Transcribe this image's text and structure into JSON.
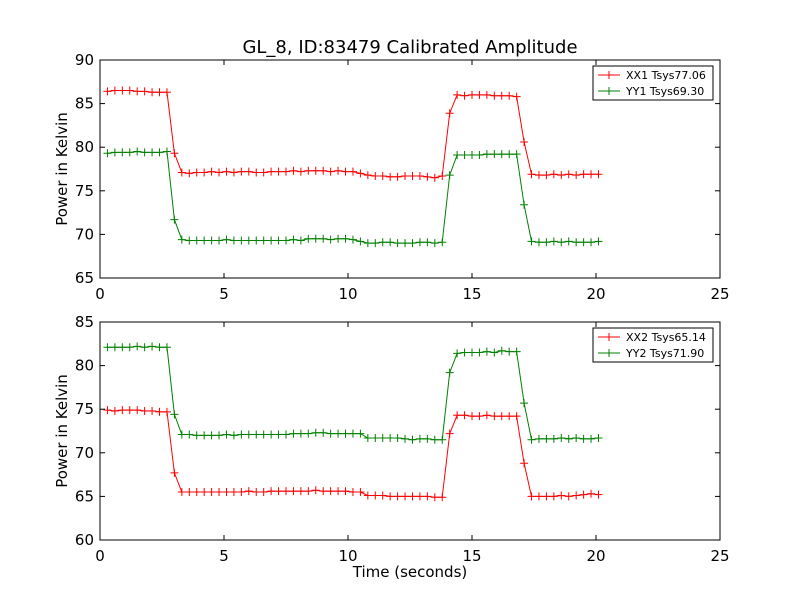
{
  "figure": {
    "title": "GL_8, ID:83479 Calibrated Amplitude",
    "xlabel": "Time (seconds)"
  },
  "chart_data": [
    {
      "type": "line",
      "title": "GL_8, ID:83479 Calibrated Amplitude",
      "xlabel": "",
      "ylabel": "Power in Kelvin",
      "xlim": [
        0,
        25
      ],
      "ylim": [
        65,
        90
      ],
      "xticks": [
        0,
        5,
        10,
        15,
        20,
        25
      ],
      "yticks": [
        65,
        70,
        75,
        80,
        85,
        90
      ],
      "grid": false,
      "legend": "top-right",
      "x": [
        0.3,
        0.6,
        0.9,
        1.2,
        1.5,
        1.8,
        2.1,
        2.4,
        2.7,
        3.0,
        3.3,
        3.6,
        3.9,
        4.2,
        4.5,
        4.8,
        5.1,
        5.4,
        5.7,
        6.0,
        6.3,
        6.6,
        6.9,
        7.2,
        7.5,
        7.8,
        8.1,
        8.4,
        8.7,
        9.0,
        9.3,
        9.6,
        9.9,
        10.2,
        10.5,
        10.8,
        11.1,
        11.4,
        11.7,
        12.0,
        12.3,
        12.6,
        12.9,
        13.2,
        13.5,
        13.8,
        14.1,
        14.4,
        14.7,
        15.0,
        15.3,
        15.6,
        15.9,
        16.2,
        16.5,
        16.8,
        17.1,
        17.4,
        17.7,
        18.0,
        18.3,
        18.6,
        18.9,
        19.2,
        19.5,
        19.8,
        20.1
      ],
      "series": [
        {
          "name": "XX1 Tsys77.06",
          "color": "#ff0000",
          "values": [
            86.4,
            86.5,
            86.5,
            86.5,
            86.4,
            86.4,
            86.3,
            86.3,
            86.3,
            79.3,
            77.1,
            77.0,
            77.1,
            77.1,
            77.2,
            77.1,
            77.2,
            77.1,
            77.2,
            77.2,
            77.1,
            77.1,
            77.2,
            77.2,
            77.2,
            77.3,
            77.2,
            77.3,
            77.3,
            77.3,
            77.2,
            77.3,
            77.2,
            77.2,
            77.0,
            76.8,
            76.7,
            76.7,
            76.6,
            76.6,
            76.7,
            76.7,
            76.7,
            76.6,
            76.5,
            76.7,
            83.9,
            86.0,
            85.9,
            86.0,
            86.0,
            86.0,
            85.9,
            85.9,
            85.9,
            85.8,
            80.6,
            76.9,
            76.8,
            76.8,
            76.9,
            76.8,
            76.9,
            76.8,
            76.9,
            76.9,
            76.9
          ]
        },
        {
          "name": "YY1 Tsys69.30",
          "color": "#008000",
          "values": [
            79.3,
            79.4,
            79.4,
            79.4,
            79.5,
            79.4,
            79.4,
            79.4,
            79.5,
            71.7,
            69.4,
            69.3,
            69.3,
            69.3,
            69.3,
            69.3,
            69.4,
            69.3,
            69.3,
            69.3,
            69.3,
            69.3,
            69.3,
            69.3,
            69.3,
            69.4,
            69.3,
            69.5,
            69.5,
            69.5,
            69.4,
            69.5,
            69.5,
            69.4,
            69.2,
            69.0,
            69.0,
            69.1,
            69.1,
            69.0,
            69.0,
            69.0,
            69.1,
            69.1,
            69.0,
            69.1,
            76.8,
            79.1,
            79.1,
            79.1,
            79.1,
            79.2,
            79.2,
            79.2,
            79.2,
            79.2,
            73.4,
            69.2,
            69.1,
            69.1,
            69.2,
            69.1,
            69.2,
            69.1,
            69.1,
            69.1,
            69.2
          ]
        }
      ]
    },
    {
      "type": "line",
      "title": "",
      "xlabel": "Time (seconds)",
      "ylabel": "Power in Kelvin",
      "xlim": [
        0,
        25
      ],
      "ylim": [
        60,
        85
      ],
      "xticks": [
        0,
        5,
        10,
        15,
        20,
        25
      ],
      "yticks": [
        60,
        65,
        70,
        75,
        80,
        85
      ],
      "grid": false,
      "legend": "top-right",
      "x": [
        0.3,
        0.6,
        0.9,
        1.2,
        1.5,
        1.8,
        2.1,
        2.4,
        2.7,
        3.0,
        3.3,
        3.6,
        3.9,
        4.2,
        4.5,
        4.8,
        5.1,
        5.4,
        5.7,
        6.0,
        6.3,
        6.6,
        6.9,
        7.2,
        7.5,
        7.8,
        8.1,
        8.4,
        8.7,
        9.0,
        9.3,
        9.6,
        9.9,
        10.2,
        10.5,
        10.8,
        11.1,
        11.4,
        11.7,
        12.0,
        12.3,
        12.6,
        12.9,
        13.2,
        13.5,
        13.8,
        14.1,
        14.4,
        14.7,
        15.0,
        15.3,
        15.6,
        15.9,
        16.2,
        16.5,
        16.8,
        17.1,
        17.4,
        17.7,
        18.0,
        18.3,
        18.6,
        18.9,
        19.2,
        19.5,
        19.8,
        20.1
      ],
      "series": [
        {
          "name": "XX2 Tsys65.14",
          "color": "#ff0000",
          "values": [
            74.9,
            74.8,
            74.9,
            74.9,
            74.9,
            74.8,
            74.8,
            74.7,
            74.7,
            67.7,
            65.5,
            65.5,
            65.5,
            65.5,
            65.5,
            65.5,
            65.5,
            65.5,
            65.5,
            65.6,
            65.5,
            65.5,
            65.6,
            65.6,
            65.6,
            65.6,
            65.6,
            65.6,
            65.7,
            65.6,
            65.6,
            65.6,
            65.6,
            65.5,
            65.5,
            65.1,
            65.1,
            65.1,
            65.0,
            65.0,
            65.0,
            65.0,
            65.0,
            65.0,
            64.9,
            64.9,
            72.2,
            74.3,
            74.3,
            74.2,
            74.2,
            74.3,
            74.2,
            74.2,
            74.2,
            74.2,
            68.8,
            65.0,
            65.0,
            65.0,
            65.0,
            65.1,
            65.0,
            65.1,
            65.2,
            65.3,
            65.2
          ]
        },
        {
          "name": "YY2 Tsys71.90",
          "color": "#008000",
          "values": [
            82.1,
            82.1,
            82.1,
            82.1,
            82.2,
            82.1,
            82.2,
            82.1,
            82.1,
            74.4,
            72.1,
            72.1,
            72.0,
            72.0,
            72.0,
            72.0,
            72.1,
            72.0,
            72.1,
            72.1,
            72.1,
            72.1,
            72.1,
            72.1,
            72.1,
            72.2,
            72.2,
            72.2,
            72.3,
            72.3,
            72.2,
            72.2,
            72.2,
            72.2,
            72.2,
            71.7,
            71.7,
            71.7,
            71.7,
            71.7,
            71.6,
            71.5,
            71.6,
            71.6,
            71.5,
            71.5,
            79.2,
            81.4,
            81.5,
            81.5,
            81.5,
            81.6,
            81.5,
            81.7,
            81.6,
            81.6,
            75.7,
            71.5,
            71.6,
            71.6,
            71.6,
            71.7,
            71.6,
            71.7,
            71.6,
            71.6,
            71.7
          ]
        }
      ]
    }
  ]
}
